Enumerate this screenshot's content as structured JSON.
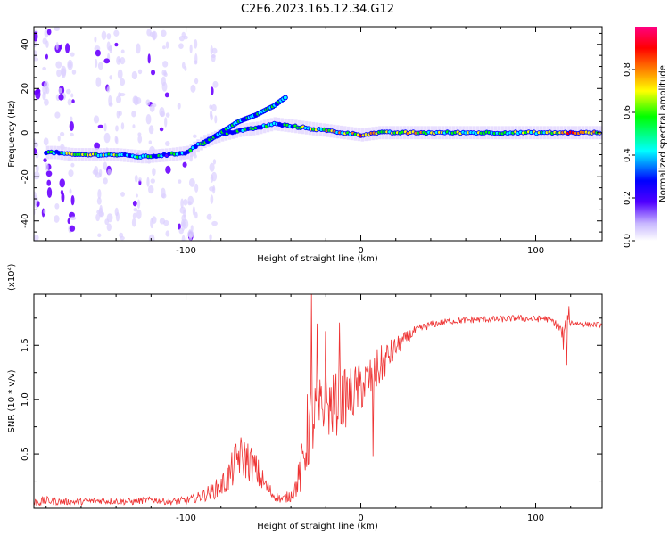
{
  "title": "C2E6.2023.165.12.34.G12",
  "colors": {
    "snr_line": "#ee3333",
    "axis": "#000000",
    "background": "#ffffff"
  },
  "chart_data": [
    {
      "type": "heatmap",
      "name": "spectrogram",
      "xlabel": "Height of straight line (km)",
      "ylabel": "Frequency (Hz)",
      "xlim": [
        -187,
        138
      ],
      "ylim": [
        -49,
        48
      ],
      "x_ticks": [
        -100,
        0,
        100
      ],
      "x_tick_labels": [
        "-100",
        "0",
        "100"
      ],
      "y_ticks": [
        -40,
        -20,
        0,
        20,
        40
      ],
      "y_tick_labels": [
        "-40",
        "-20",
        "0",
        "20",
        "40"
      ],
      "colorbar": {
        "label": "Normalized spectral amplitude",
        "range": [
          0,
          1
        ],
        "ticks": [
          0.0,
          0.2,
          0.4,
          0.6,
          0.8
        ],
        "tick_labels": [
          "0.0",
          "0.2",
          "0.4",
          "0.6",
          "0.8"
        ],
        "colormap": [
          "#dcd0ff",
          "#6a00ff",
          "#0000ff",
          "#00ffff",
          "#00ff00",
          "#ffff00",
          "#ff7f00",
          "#ff0000",
          "#ff0080"
        ]
      },
      "ridge": [
        {
          "x": -175,
          "freq": -9,
          "amp": 0.35
        },
        {
          "x": -165,
          "freq": -10,
          "amp": 0.55
        },
        {
          "x": -155,
          "freq": -10,
          "amp": 0.5
        },
        {
          "x": -140,
          "freq": -10,
          "amp": 0.5
        },
        {
          "x": -125,
          "freq": -11,
          "amp": 0.4
        },
        {
          "x": -110,
          "freq": -10,
          "amp": 0.35
        },
        {
          "x": -100,
          "freq": -9,
          "amp": 0.35
        },
        {
          "x": -90,
          "freq": -4,
          "amp": 0.4
        },
        {
          "x": -80,
          "freq": -1,
          "amp": 0.4
        },
        {
          "x": -70,
          "freq": 1,
          "amp": 0.35
        },
        {
          "x": -60,
          "freq": 2,
          "amp": 0.4
        },
        {
          "x": -50,
          "freq": 4,
          "amp": 0.35
        },
        {
          "x": -40,
          "freq": 3,
          "amp": 0.35
        },
        {
          "x": -30,
          "freq": 2,
          "amp": 0.5
        },
        {
          "x": -20,
          "freq": 1,
          "amp": 0.6
        },
        {
          "x": -10,
          "freq": 0,
          "amp": 0.55
        },
        {
          "x": 0,
          "freq": -1,
          "amp": 0.7
        },
        {
          "x": 10,
          "freq": 0,
          "amp": 0.5
        },
        {
          "x": 20,
          "freq": 0,
          "amp": 0.6
        },
        {
          "x": 30,
          "freq": 0,
          "amp": 0.65
        },
        {
          "x": 40,
          "freq": 0,
          "amp": 0.55
        },
        {
          "x": 50,
          "freq": 0,
          "amp": 0.5
        },
        {
          "x": 60,
          "freq": 0,
          "amp": 0.5
        },
        {
          "x": 70,
          "freq": 0,
          "amp": 0.45
        },
        {
          "x": 80,
          "freq": 0,
          "amp": 0.5
        },
        {
          "x": 90,
          "freq": 0,
          "amp": 0.45
        },
        {
          "x": 100,
          "freq": 0,
          "amp": 0.5
        },
        {
          "x": 110,
          "freq": 0,
          "amp": 0.45
        },
        {
          "x": 120,
          "freq": 0,
          "amp": 0.9
        },
        {
          "x": 130,
          "freq": 0,
          "amp": 0.6
        }
      ],
      "branch": [
        {
          "x": -90,
          "freq": -5,
          "amp": 0.35
        },
        {
          "x": -80,
          "freq": 0,
          "amp": 0.4
        },
        {
          "x": -70,
          "freq": 5,
          "amp": 0.35
        },
        {
          "x": -60,
          "freq": 8,
          "amp": 0.4
        },
        {
          "x": -50,
          "freq": 12,
          "amp": 0.45
        },
        {
          "x": -43,
          "freq": 16,
          "amp": 0.35
        }
      ]
    },
    {
      "type": "line",
      "name": "snr",
      "xlabel": "Height of straight line (km)",
      "ylabel": "SNR (10 * v/v)",
      "y_scale_label": "(x10⁴)",
      "xlim": [
        -187,
        138
      ],
      "ylim": [
        0,
        19700
      ],
      "x_ticks": [
        -100,
        0,
        100
      ],
      "x_tick_labels": [
        "-100",
        "0",
        "100"
      ],
      "y_ticks": [
        5000,
        10000,
        15000
      ],
      "y_tick_labels": [
        "0.5",
        "1.0",
        "1.5"
      ],
      "series": [
        {
          "name": "SNR",
          "color": "#ee3333",
          "x": [
            -187,
            -180,
            -170,
            -160,
            -150,
            -140,
            -130,
            -120,
            -110,
            -100,
            -95,
            -90,
            -85,
            -80,
            -75,
            -70,
            -65,
            -60,
            -55,
            -50,
            -45,
            -40,
            -37,
            -34,
            -32,
            -30,
            -28,
            -25,
            -20,
            -15,
            -10,
            -5,
            0,
            5,
            10,
            15,
            20,
            25,
            30,
            35,
            40,
            50,
            60,
            70,
            80,
            90,
            100,
            105,
            110,
            114,
            116,
            118,
            120,
            125,
            130,
            138
          ],
          "values": [
            500,
            700,
            600,
            600,
            700,
            650,
            600,
            800,
            600,
            700,
            900,
            1200,
            1600,
            2000,
            3000,
            4800,
            4500,
            3500,
            2200,
            1200,
            800,
            1200,
            2000,
            3500,
            5500,
            7500,
            8000,
            8800,
            9200,
            9500,
            10000,
            10500,
            11200,
            11800,
            12800,
            13800,
            14800,
            15500,
            16200,
            16600,
            16900,
            17200,
            17300,
            17400,
            17400,
            17500,
            17400,
            17500,
            17200,
            16500,
            15500,
            17000,
            17100,
            17000,
            16900,
            16900
          ],
          "noise": [
            400,
            400,
            300,
            300,
            300,
            300,
            300,
            300,
            300,
            400,
            400,
            600,
            800,
            1000,
            1600,
            2000,
            2000,
            1600,
            1000,
            500,
            400,
            600,
            1000,
            2400,
            3200,
            4000,
            3600,
            3200,
            3000,
            3000,
            2800,
            2600,
            2400,
            2200,
            2000,
            1600,
            1000,
            700,
            500,
            400,
            350,
            300,
            300,
            300,
            300,
            300,
            300,
            300,
            300,
            600,
            1200,
            900,
            300,
            250,
            250,
            250
          ],
          "spikes": [
            {
              "x": -28,
              "value": 19700
            },
            {
              "x": -25,
              "value": 17000
            },
            {
              "x": -20,
              "value": 16300
            },
            {
              "x": -12,
              "value": 17100
            },
            {
              "x": 7,
              "value": 4800
            },
            {
              "x": 118,
              "value": 13200
            },
            {
              "x": 119,
              "value": 18600
            }
          ]
        }
      ]
    }
  ]
}
